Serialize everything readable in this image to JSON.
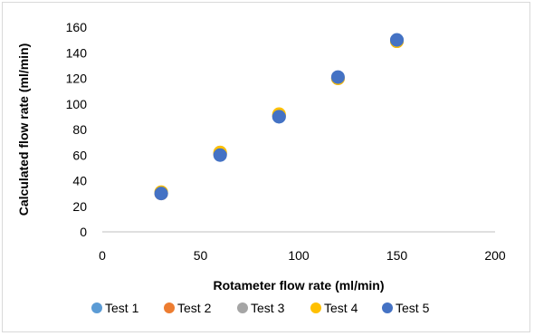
{
  "chart_data": {
    "type": "scatter",
    "title": "",
    "xlabel": "Rotameter flow rate (ml/min)",
    "ylabel": "Calculated flow rate (ml/min)",
    "xlim": [
      0,
      200
    ],
    "ylim": [
      0,
      160
    ],
    "xticks": [
      "0",
      "50",
      "100",
      "150",
      "200"
    ],
    "yticks": [
      "0",
      "20",
      "40",
      "60",
      "80",
      "100",
      "120",
      "140",
      "160"
    ],
    "grid": false,
    "legend_position": "bottom",
    "series": [
      {
        "name": "Test 1",
        "color": "#5B9BD5",
        "x": [
          30,
          60,
          90,
          120,
          150
        ],
        "y": [
          30,
          61,
          90,
          120,
          150
        ]
      },
      {
        "name": "Test 2",
        "color": "#ED7D31",
        "x": [
          30,
          60,
          90,
          120,
          150
        ],
        "y": [
          30,
          61,
          91,
          120,
          149
        ]
      },
      {
        "name": "Test 3",
        "color": "#A5A5A5",
        "x": [
          30,
          60,
          90,
          120,
          150
        ],
        "y": [
          31,
          62,
          91,
          120,
          149
        ]
      },
      {
        "name": "Test 4",
        "color": "#FFC000",
        "x": [
          30,
          60,
          90,
          120,
          150
        ],
        "y": [
          31,
          62,
          92,
          120,
          149
        ]
      },
      {
        "name": "Test 5",
        "color": "#4472C4",
        "x": [
          30,
          60,
          90,
          120,
          150
        ],
        "y": [
          30,
          60,
          90,
          121,
          150
        ]
      }
    ]
  }
}
